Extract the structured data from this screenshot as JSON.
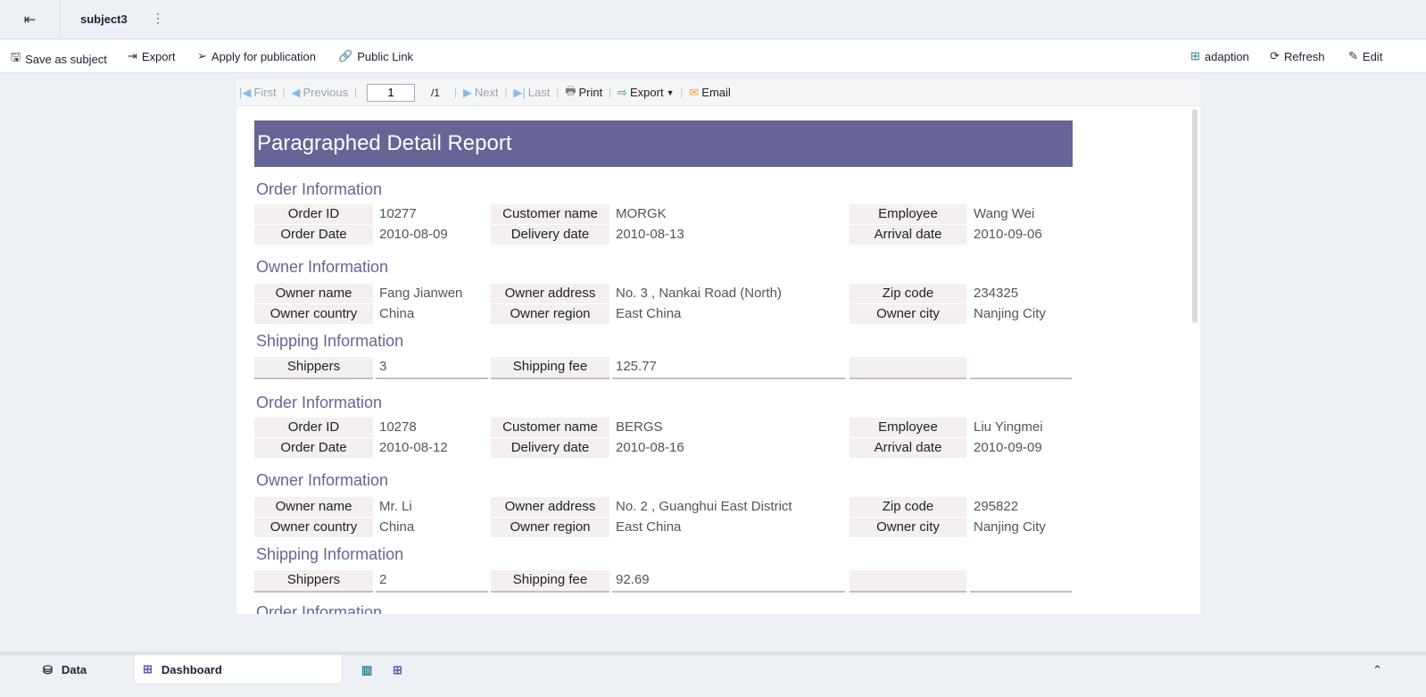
{
  "header": {
    "subject": "subject3"
  },
  "toolbar": {
    "save": "Save as subject",
    "export": "Export",
    "apply": "Apply for publication",
    "public_link": "Public Link",
    "adaption": "adaption",
    "refresh": "Refresh",
    "edit": "Edit"
  },
  "viewer": {
    "first": "First",
    "previous": "Previous",
    "page": "1",
    "total": "/1",
    "next": "Next",
    "last": "Last",
    "print": "Print",
    "export": "Export",
    "email": "Email"
  },
  "report": {
    "title": "Paragraphed Detail Report",
    "headings": {
      "order": "Order Information",
      "owner": "Owner Information",
      "shipping": "Shipping Information"
    },
    "labels": {
      "order_id": "Order ID",
      "customer": "Customer name",
      "employee": "Employee",
      "order_date": "Order Date",
      "delivery": "Delivery date",
      "arrival": "Arrival date",
      "owner_name": "Owner name",
      "owner_address": "Owner address",
      "zip": "Zip code",
      "owner_country": "Owner country",
      "owner_region": "Owner region",
      "owner_city": "Owner city",
      "shippers": "Shippers",
      "fee": "Shipping fee"
    },
    "records": [
      {
        "order_id": "10277",
        "customer": "MORGK",
        "employee": "Wang Wei",
        "order_date": "2010-08-09",
        "delivery": "2010-08-13",
        "arrival": "2010-09-06",
        "owner_name": "Fang Jianwen",
        "owner_address": "No. 3 , Nankai Road (North)",
        "zip": "234325",
        "owner_country": "China",
        "owner_region": "East China",
        "owner_city": "Nanjing City",
        "shippers": "3",
        "fee": "125.77"
      },
      {
        "order_id": "10278",
        "customer": "BERGS",
        "employee": "Liu Yingmei",
        "order_date": "2010-08-12",
        "delivery": "2010-08-16",
        "arrival": "2010-09-09",
        "owner_name": "Mr. Li",
        "owner_address": "No. 2 , Guanghui East District",
        "zip": "295822",
        "owner_country": "China",
        "owner_region": "East China",
        "owner_city": "Nanjing City",
        "shippers": "2",
        "fee": "92.69"
      }
    ]
  },
  "bottom": {
    "data": "Data",
    "dashboard": "Dashboard"
  },
  "colors": {
    "title_bg": "#666596",
    "label_bg": "#f4f0ef"
  }
}
